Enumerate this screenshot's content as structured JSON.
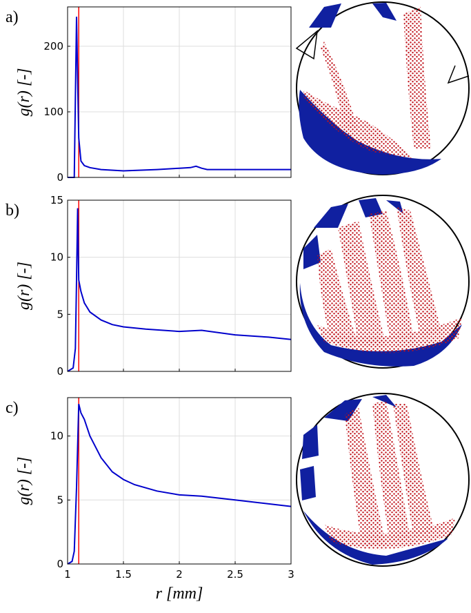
{
  "chart_data": [
    {
      "type": "line",
      "panel_label": "a)",
      "ylabel": "g(r) [-]",
      "x": [
        1.0,
        1.04,
        1.06,
        1.07,
        1.08,
        1.09,
        1.1,
        1.12,
        1.15,
        1.2,
        1.3,
        1.5,
        1.8,
        2.0,
        2.1,
        2.15,
        2.2,
        2.25,
        2.5,
        3.0
      ],
      "values": [
        0,
        0,
        0,
        120,
        245,
        150,
        60,
        25,
        18,
        15,
        12,
        10,
        12,
        14,
        15,
        17,
        14,
        12,
        12,
        12
      ],
      "color": "#0000cc",
      "xlim": [
        1,
        3
      ],
      "ylim": [
        0,
        260
      ],
      "xticks": [
        1,
        1.5,
        2,
        2.5,
        3
      ],
      "yticks": [
        0,
        100,
        200
      ],
      "grid": true,
      "vline": {
        "x": 1.1,
        "color": "#ff0000"
      }
    },
    {
      "type": "line",
      "panel_label": "b)",
      "ylabel": "g(r) [-]",
      "x": [
        1.0,
        1.05,
        1.07,
        1.08,
        1.09,
        1.1,
        1.12,
        1.15,
        1.2,
        1.3,
        1.4,
        1.5,
        1.7,
        2.0,
        2.2,
        2.5,
        2.8,
        3.0
      ],
      "values": [
        0,
        0.3,
        2,
        8,
        14.3,
        8,
        7,
        6,
        5.2,
        4.5,
        4.1,
        3.9,
        3.7,
        3.5,
        3.6,
        3.2,
        3.0,
        2.8
      ],
      "color": "#0000cc",
      "xlim": [
        1,
        3
      ],
      "ylim": [
        0,
        15
      ],
      "xticks": [
        1,
        1.5,
        2,
        2.5,
        3
      ],
      "yticks": [
        0,
        5,
        10,
        15
      ],
      "grid": true,
      "vline": {
        "x": 1.1,
        "color": "#ff0000"
      }
    },
    {
      "type": "line",
      "panel_label": "c)",
      "ylabel": "g(r) [-]",
      "xlabel": "r [mm]",
      "x": [
        1.0,
        1.04,
        1.06,
        1.08,
        1.1,
        1.12,
        1.15,
        1.2,
        1.3,
        1.4,
        1.5,
        1.6,
        1.8,
        2.0,
        2.2,
        2.5,
        2.8,
        3.0
      ],
      "values": [
        0,
        0.2,
        1,
        6,
        12.5,
        11.8,
        11.3,
        10,
        8.3,
        7.2,
        6.6,
        6.2,
        5.7,
        5.4,
        5.3,
        5.0,
        4.7,
        4.5
      ],
      "color": "#0000cc",
      "xlim": [
        1,
        3
      ],
      "ylim": [
        0,
        13
      ],
      "xticks": [
        1,
        1.5,
        2,
        2.5,
        3
      ],
      "yticks": [
        0,
        5,
        10
      ],
      "grid": true,
      "vline": {
        "x": 1.1,
        "color": "#ff0000"
      }
    }
  ]
}
